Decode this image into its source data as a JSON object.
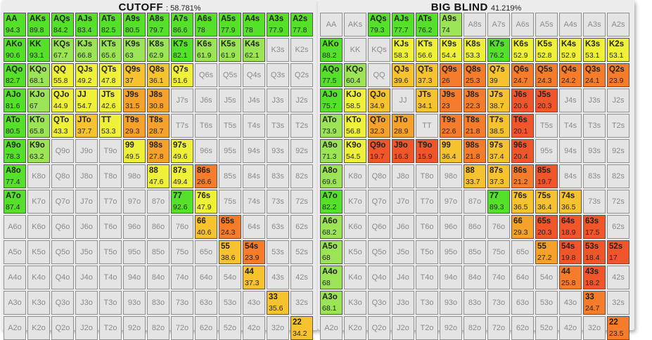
{
  "ranks": [
    "A",
    "K",
    "Q",
    "J",
    "T",
    "9",
    "8",
    "7",
    "6",
    "5",
    "4",
    "3",
    "2"
  ],
  "panels": [
    {
      "title": "CUTOFF",
      "percentage": ": 58.781%",
      "cells": {
        "AA": 94.3,
        "AKs": 89.8,
        "AQs": 84.2,
        "AJs": 83.4,
        "ATs": 82.5,
        "A9s": 80.5,
        "A8s": 79.7,
        "A7s": 86.6,
        "A6s": 78,
        "A5s": 77.9,
        "A4s": 78,
        "A3s": 77.9,
        "A2s": 77.8,
        "AKo": 90.6,
        "KK": 93.1,
        "KQs": 67.7,
        "KJs": 66.8,
        "KTs": 65.6,
        "K9s": 63,
        "K8s": 62.9,
        "K7s": 82.1,
        "K6s": 61.9,
        "K5s": 61.9,
        "K4s": 62.1,
        "AQo": 82.7,
        "KQo": 68.1,
        "QQ": 55.8,
        "QJs": 49.2,
        "QTs": 47.8,
        "Q9s": 37,
        "Q8s": 36.1,
        "Q7s": 51.6,
        "AJo": 81.6,
        "KJo": 67,
        "QJo": 44.9,
        "JJ": 54.7,
        "JTs": 42.6,
        "J9s": 31.5,
        "J8s": 30.8,
        "ATo": 80.5,
        "KTo": 65.8,
        "QTo": 43.3,
        "JTo": 37.7,
        "TT": 53.3,
        "T9s": 29.3,
        "T8s": 28.7,
        "A9o": 78.3,
        "K9o": 63.2,
        "99": 49.5,
        "98s": 27.8,
        "97s": 49.6,
        "A8o": 77.4,
        "88": 47.6,
        "87s": 49.4,
        "86s": 26.6,
        "A7o": 87.4,
        "77": 92.6,
        "76s": 47.9,
        "66": 40.6,
        "65s": 24.3,
        "55": 38.6,
        "54s": 23.9,
        "44": 37.3,
        "33": 35.6,
        "22": 34.2
      }
    },
    {
      "title": "BIG BLIND",
      "percentage": "41.219%",
      "cells": {
        "AQs": 79.3,
        "AJs": 77.7,
        "ATs": 76.2,
        "A9s": 74,
        "AKo": 88.2,
        "KJs": 58.3,
        "KTs": 56.6,
        "K9s": 54.4,
        "K8s": 53.3,
        "K7s": 76.2,
        "K6s": 52.9,
        "K5s": 52.8,
        "K4s": 52.9,
        "K3s": 53.1,
        "K2s": 53.1,
        "AQo": 77.5,
        "KQo": 60.4,
        "QJs": 39.6,
        "QTs": 37.3,
        "Q9s": 26,
        "Q8s": 25.3,
        "Q7s": 39,
        "Q6s": 24.7,
        "Q5s": 24.3,
        "Q4s": 24.2,
        "Q3s": 24.1,
        "Q2s": 23.9,
        "AJo": 75.7,
        "KJo": 58.5,
        "QJo": 34.9,
        "JTs": 34.1,
        "J9s": 23,
        "J8s": 22.3,
        "J7s": 38.7,
        "J6s": 20.6,
        "J5s": 20.3,
        "ATo": 73.9,
        "KTo": 56.8,
        "QTo": 32.3,
        "JTo": 28.9,
        "T9s": 22.6,
        "T8s": 21.8,
        "T7s": 38.5,
        "T6s": 20.1,
        "A9o": 71.3,
        "K9o": 54.5,
        "Q9o": 19.7,
        "J9o": 16.3,
        "T9o": 15.9,
        "99": 36.4,
        "98s": 21.8,
        "97s": 37.4,
        "96s": 20.4,
        "A8o": 69.6,
        "88": 33.7,
        "87s": 37.3,
        "86s": 21.2,
        "85s": 19.7,
        "A7o": 82.2,
        "77": 89.3,
        "76s": 36.5,
        "75s": 36.4,
        "74s": 36.5,
        "A6o": 68.2,
        "66": 29.3,
        "65s": 20.3,
        "64s": 18.9,
        "63s": 17.5,
        "A5o": 68,
        "55": 27.2,
        "54s": 19.8,
        "53s": 18.4,
        "52s": 17,
        "A4o": 68,
        "44": 25.8,
        "43s": 18.2,
        "A3o": 68.1,
        "33": 24.7,
        "22": 23.5
      }
    }
  ]
}
